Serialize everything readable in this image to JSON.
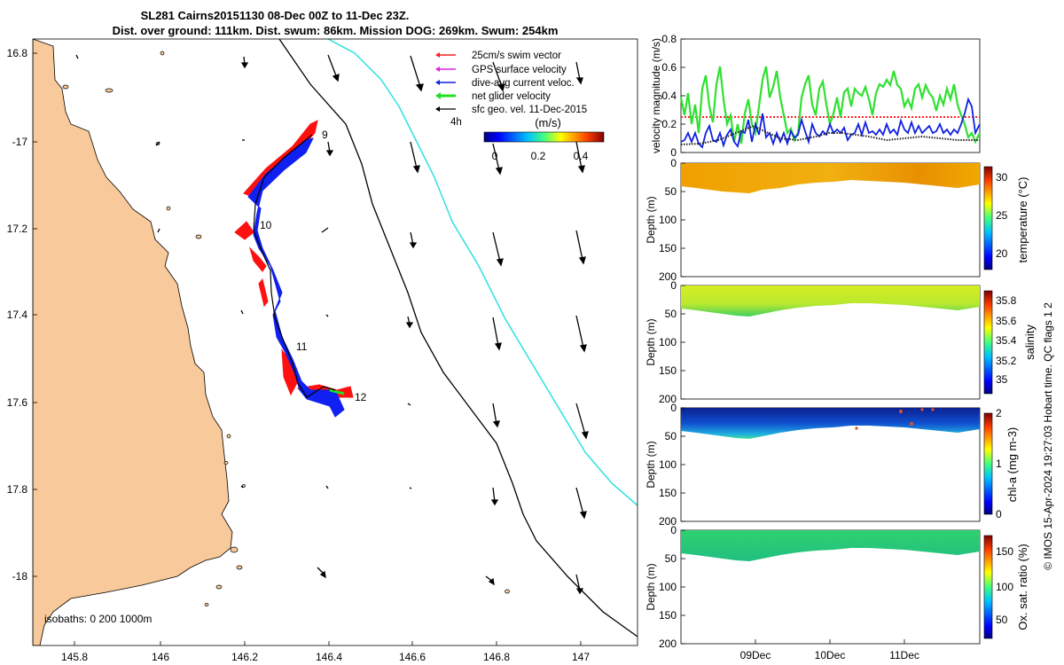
{
  "header": {
    "title_line1": "SL281 Cairns20151130 08-Dec 00Z to 11-Dec 23Z.",
    "title_line2": "Dist. over ground: 111km. Dist. swum: 86km. Mission DOG: 269km. Swum: 254km"
  },
  "map": {
    "lon_ticks": [
      "145.8",
      "146",
      "146.2",
      "146.4",
      "146.6",
      "146.8",
      "147"
    ],
    "lat_ticks": [
      "16.8",
      "-17",
      "17.2",
      "17.4",
      "17.6",
      "17.8",
      "-18"
    ],
    "day_labels": [
      "9",
      "10",
      "11",
      "12"
    ],
    "isobath_label": "isobaths: 0   200  1000m",
    "legend": [
      {
        "label": "25cm/s swim vector",
        "color": "#ff2020"
      },
      {
        "label": "GPS surface velocity",
        "color": "#e020e0"
      },
      {
        "label": "dive-avg current veloc.",
        "color": "#1020e0"
      },
      {
        "label": "net glider velocity",
        "color": "#20e020"
      },
      {
        "label": "sfc geo. vel. 11-Dec-2015",
        "color": "#000000"
      }
    ],
    "interval_label": "4h",
    "colorbar_unit": "(m/s)",
    "colorbar_ticks": [
      "0",
      "0.2",
      "0.4"
    ],
    "colors": {
      "land": "#f8c99a",
      "isobath_200": "#000000",
      "isobath_1000": "#30e0e0"
    }
  },
  "panels": {
    "velocity": {
      "ylabel": "velocity magnitude (m/s)",
      "yticks": [
        "0",
        "0.2",
        "0.4",
        "0.6",
        "0.8"
      ]
    },
    "depth_label": "Depth (m)",
    "depth_ticks": [
      "0",
      "50",
      "100",
      "150",
      "200"
    ],
    "temperature": {
      "cb_label": "temperature (°C)",
      "cb_ticks": [
        "20",
        "25",
        "30"
      ]
    },
    "salinity": {
      "cb_label": "salinity",
      "cb_ticks": [
        "35",
        "35.2",
        "35.4",
        "35.6",
        "35.8"
      ]
    },
    "chla": {
      "cb_label": "chl-a (mg m-3)",
      "cb_ticks": [
        "0",
        "1",
        "2"
      ]
    },
    "oxygen": {
      "cb_label": "Ox. sat. ratio (%)",
      "cb_ticks": [
        "50",
        "100",
        "150"
      ]
    },
    "time_ticks": [
      "09Dec",
      "10Dec",
      "11Dec"
    ]
  },
  "credit": "© IMOS 15-Apr-2024 19:27:03 Hobart time. QC flags 1  2"
}
